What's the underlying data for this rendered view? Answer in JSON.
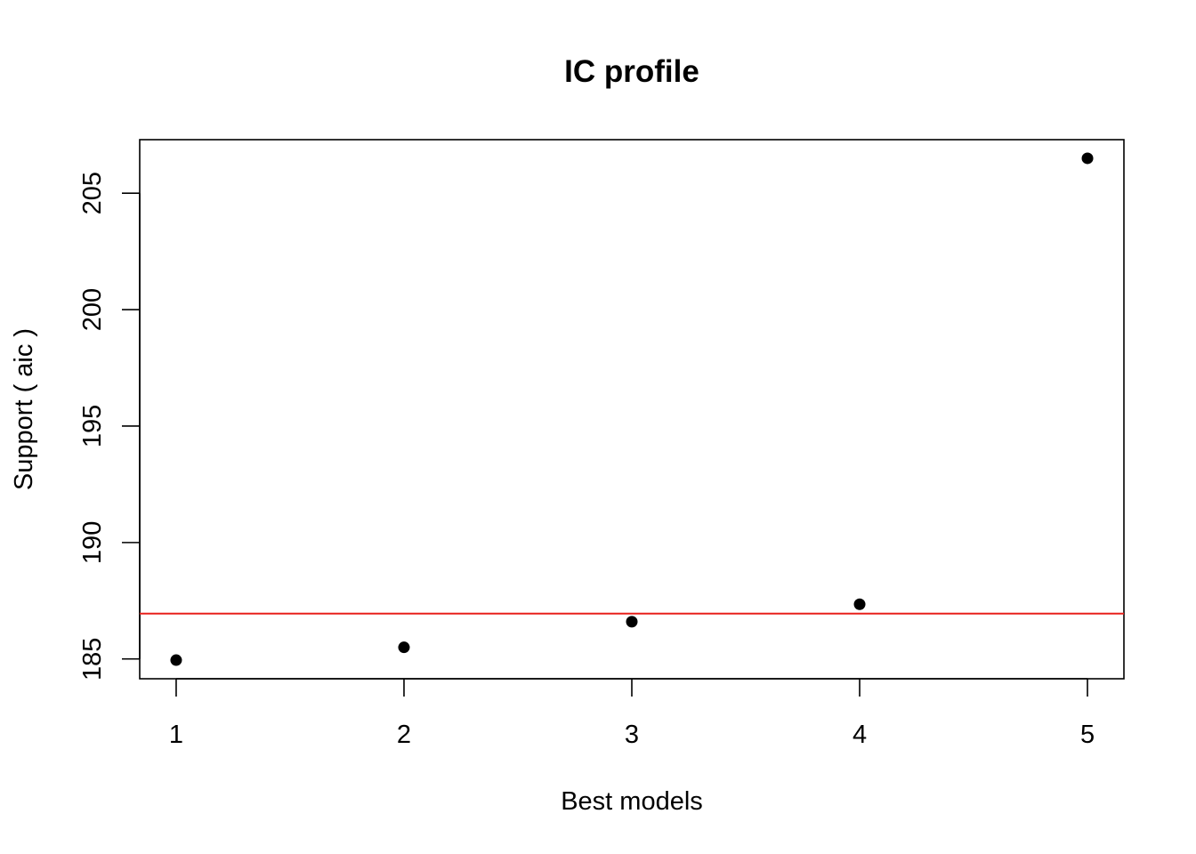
{
  "chart_data": {
    "type": "scatter",
    "title": "IC profile",
    "xlabel": "Best models",
    "ylabel": "Support ( aic )",
    "x": [
      1,
      2,
      3,
      4,
      5
    ],
    "y": [
      184.95,
      185.5,
      186.6,
      187.35,
      206.5
    ],
    "x_ticks": [
      "1",
      "2",
      "3",
      "4",
      "5"
    ],
    "y_ticks": [
      "185",
      "190",
      "195",
      "200",
      "205"
    ],
    "xlim": [
      0.84,
      5.16
    ],
    "ylim": [
      184.15,
      207.3
    ],
    "reference_line": {
      "y": 186.95,
      "color": "#e8211c"
    },
    "point_color": "#000000",
    "grid": false,
    "legend": "none"
  }
}
